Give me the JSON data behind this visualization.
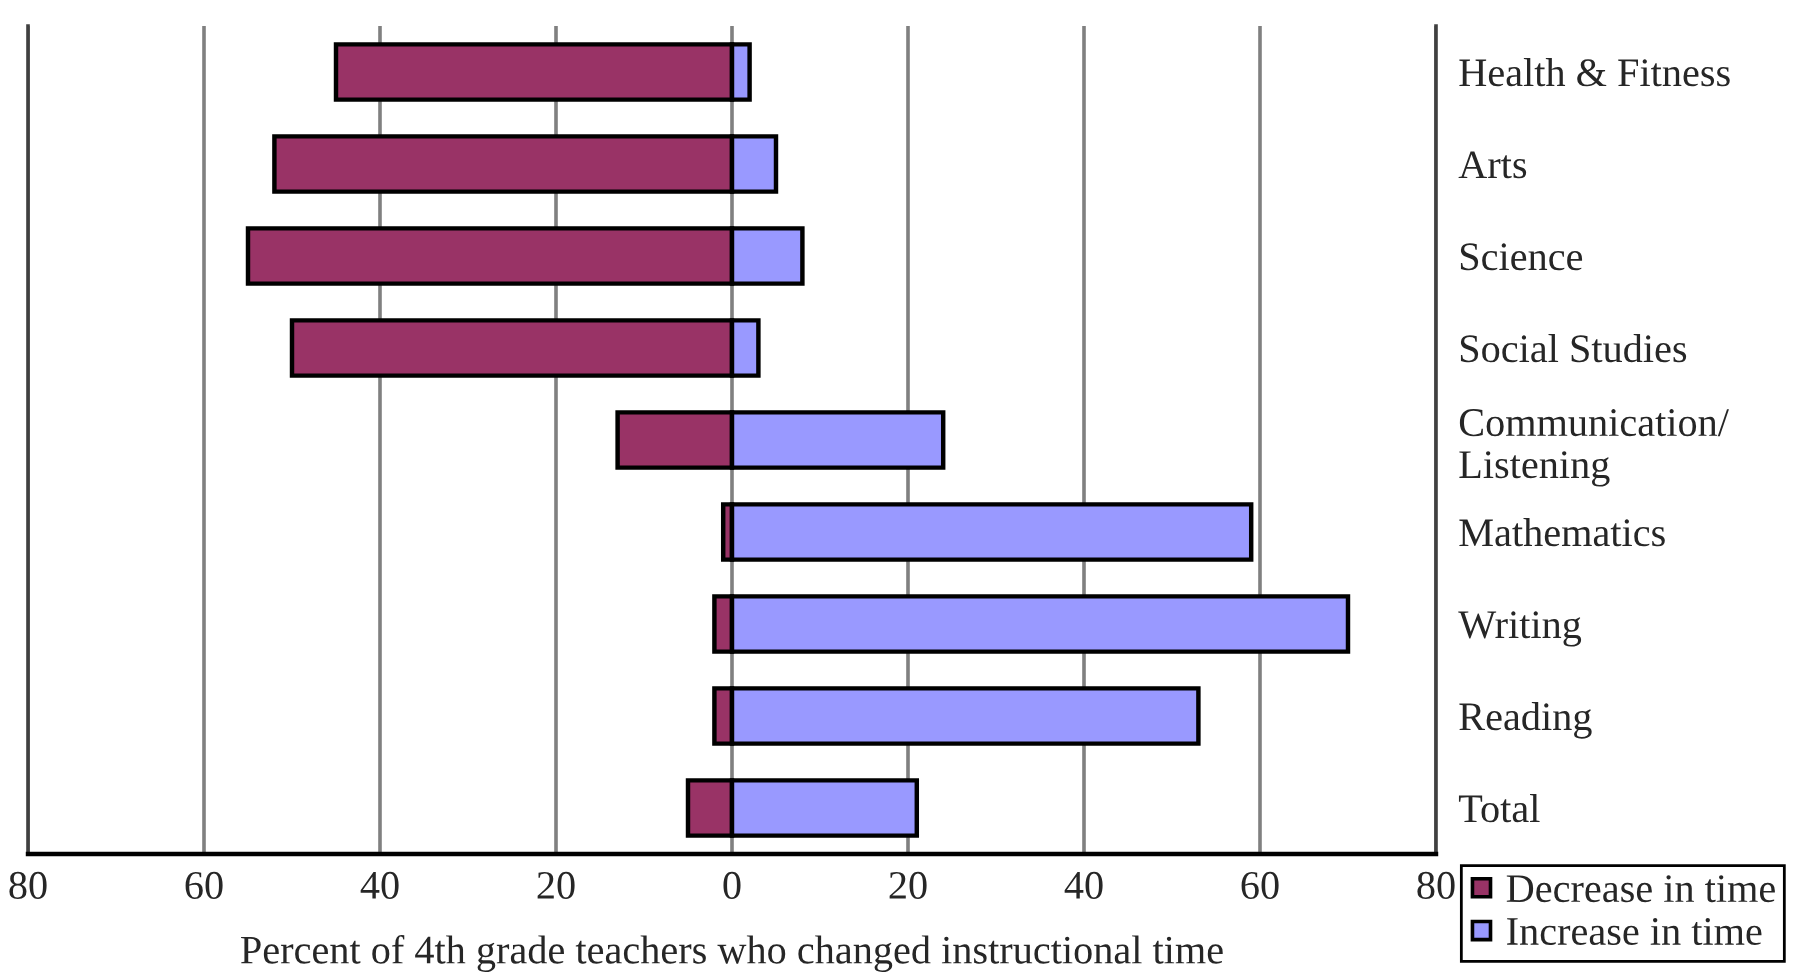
{
  "chart_data": {
    "type": "bar",
    "orientation": "horizontal",
    "stacked": true,
    "xlabel": "Percent of 4th grade teachers who changed instructional time",
    "categories": [
      "Health & Fitness",
      "Arts",
      "Science",
      "Social Studies",
      "Communication/\nListening",
      "Mathematics",
      "Writing",
      "Reading",
      "Total"
    ],
    "series": [
      {
        "name": "Decrease in time",
        "color": "#993366",
        "values": [
          -45,
          -52,
          -55,
          -50,
          -13,
          -1,
          -2,
          -2,
          -5
        ]
      },
      {
        "name": "Increase in time",
        "color": "#9999ff",
        "values": [
          2,
          5,
          8,
          3,
          24,
          59,
          70,
          53,
          21
        ]
      }
    ],
    "xlim": [
      -80,
      80
    ],
    "xticks": [
      {
        "value": -80,
        "label": "80"
      },
      {
        "value": -60,
        "label": "60"
      },
      {
        "value": -40,
        "label": "40"
      },
      {
        "value": -20,
        "label": "20"
      },
      0,
      20,
      40,
      60,
      80
    ],
    "grid": "x",
    "legend": "bottom right"
  }
}
